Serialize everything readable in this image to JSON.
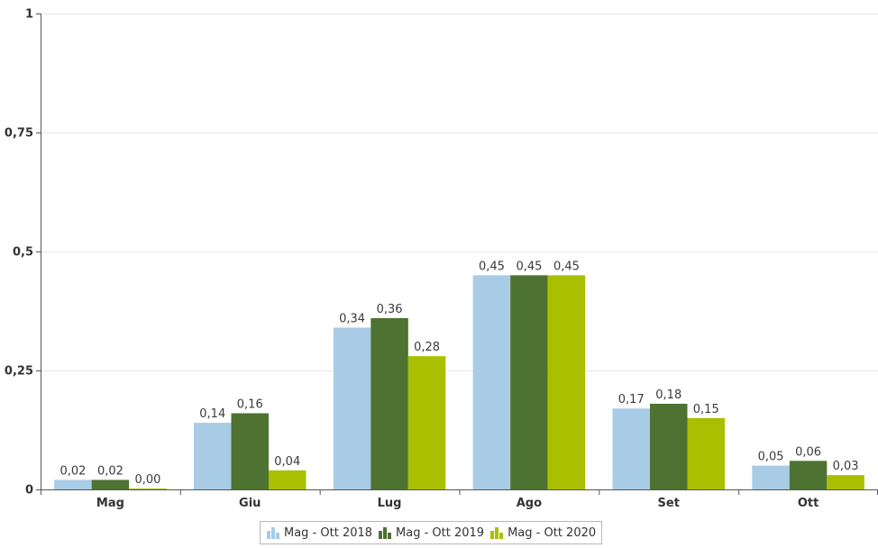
{
  "chart_data": {
    "type": "bar",
    "categories": [
      "Mag",
      "Giu",
      "Lug",
      "Ago",
      "Set",
      "Ott"
    ],
    "series": [
      {
        "name": "Mag - Ott 2018",
        "color": "#a8cbe6",
        "values": [
          0.02,
          0.14,
          0.34,
          0.45,
          0.17,
          0.05
        ],
        "labels": [
          "0,02",
          "0,14",
          "0,34",
          "0,45",
          "0,17",
          "0,05"
        ]
      },
      {
        "name": "Mag - Ott 2019",
        "color": "#4e7231",
        "values": [
          0.02,
          0.16,
          0.36,
          0.45,
          0.18,
          0.06
        ],
        "labels": [
          "0,02",
          "0,16",
          "0,36",
          "0,45",
          "0,18",
          "0,06"
        ]
      },
      {
        "name": "Mag - Ott 2020",
        "color": "#a9bf00",
        "values": [
          0.0,
          0.04,
          0.28,
          0.45,
          0.15,
          0.03
        ],
        "labels": [
          "0,00",
          "0,04",
          "0,28",
          "0,45",
          "0,15",
          "0,03"
        ]
      }
    ],
    "yticks": [
      0,
      0.25,
      0.5,
      0.75,
      1
    ],
    "ytick_labels": [
      "0",
      "0,25",
      "0,5",
      "0,75",
      "1"
    ],
    "ylim": [
      0,
      1
    ],
    "grid": true,
    "legend_position": "bottom-center"
  }
}
